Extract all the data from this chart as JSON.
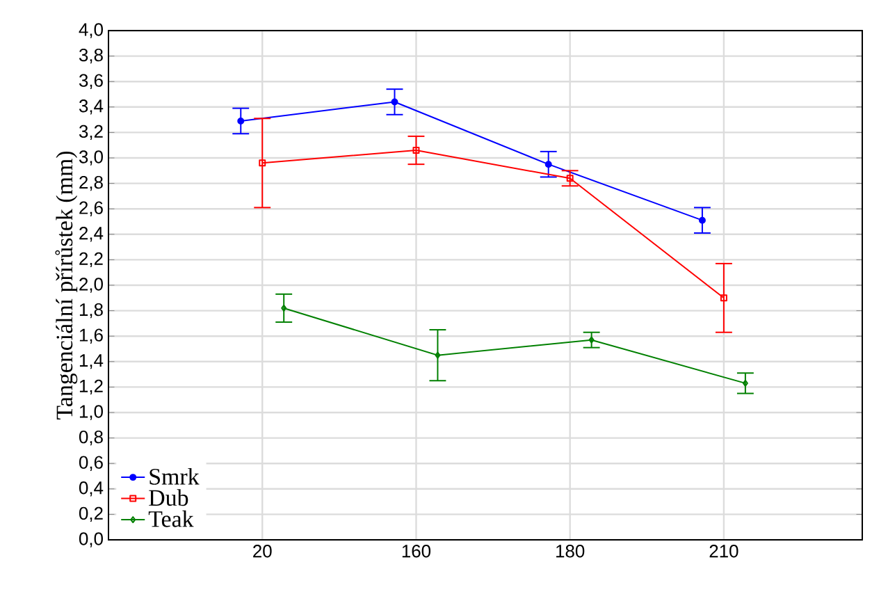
{
  "chart_data": {
    "type": "line",
    "ylabel": "Tangenciální přírůstek (mm)",
    "categories": [
      "20",
      "160",
      "180",
      "210"
    ],
    "ylim": [
      0,
      4
    ],
    "yticks": [
      {
        "value": 0,
        "label": "0,0"
      },
      {
        "value": 0.2,
        "label": "0,2"
      },
      {
        "value": 0.4,
        "label": "0,4"
      },
      {
        "value": 0.6,
        "label": "0,6"
      },
      {
        "value": 0.8,
        "label": "0,8"
      },
      {
        "value": 1.0,
        "label": "1,0"
      },
      {
        "value": 1.2,
        "label": "1,2"
      },
      {
        "value": 1.4,
        "label": "1,4"
      },
      {
        "value": 1.6,
        "label": "1,6"
      },
      {
        "value": 1.8,
        "label": "1,8"
      },
      {
        "value": 2.0,
        "label": "2,0"
      },
      {
        "value": 2.2,
        "label": "2,2"
      },
      {
        "value": 2.4,
        "label": "2,4"
      },
      {
        "value": 2.6,
        "label": "2,6"
      },
      {
        "value": 2.8,
        "label": "2,8"
      },
      {
        "value": 3.0,
        "label": "3,0"
      },
      {
        "value": 3.2,
        "label": "3,2"
      },
      {
        "value": 3.4,
        "label": "3,4"
      },
      {
        "value": 3.6,
        "label": "3,6"
      },
      {
        "value": 3.8,
        "label": "3,8"
      },
      {
        "value": 4.0,
        "label": "4,0"
      }
    ],
    "grid": true,
    "legend": "bottom left",
    "series": [
      {
        "name": "Smrk",
        "color": "#0000ff",
        "marker": "circle",
        "values": [
          3.29,
          3.44,
          2.95,
          2.51
        ],
        "errors": [
          0.1,
          0.1,
          0.1,
          0.1
        ]
      },
      {
        "name": "Dub",
        "color": "#ff0000",
        "marker": "square",
        "values": [
          2.96,
          3.06,
          2.84,
          1.9
        ],
        "errors": [
          0.35,
          0.11,
          0.06,
          0.27
        ]
      },
      {
        "name": "Teak",
        "color": "#008000",
        "marker": "diamond",
        "values": [
          1.82,
          1.45,
          1.57,
          1.23
        ],
        "errors": [
          0.11,
          0.2,
          0.06,
          0.08
        ]
      }
    ]
  }
}
